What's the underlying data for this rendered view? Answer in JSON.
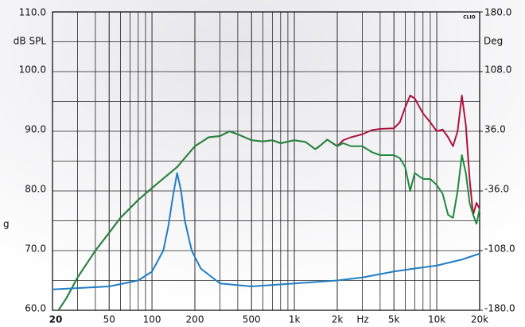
{
  "chart_data": {
    "type": "line",
    "y_label": "dB SPL",
    "y2_label": "Deg",
    "x_label": "Hz",
    "watermark": "CLIO",
    "side_note": "g",
    "log_x": true,
    "grid": true,
    "xlim": [
      20,
      20000
    ],
    "xticks": [
      20,
      50,
      100,
      200,
      500,
      {
        "value": 1000,
        "label": "1k"
      },
      {
        "value": 2000,
        "label": "2k"
      },
      {
        "value": 5000,
        "label": "5k"
      },
      {
        "value": 10000,
        "label": "10k"
      },
      {
        "value": 20000,
        "label": "20k"
      }
    ],
    "ylim": [
      60,
      110
    ],
    "yticks": [
      {
        "value": 60,
        "label": "60.0"
      },
      {
        "value": 70,
        "label": "70.0"
      },
      {
        "value": 80,
        "label": "80.0"
      },
      {
        "value": 90,
        "label": "90.0"
      },
      {
        "value": 100,
        "label": "100.0"
      },
      {
        "value": 110,
        "label": "110.0"
      }
    ],
    "y2lim": [
      -180,
      180
    ],
    "y2ticks": [
      {
        "value": -180,
        "label": "-180.0"
      },
      {
        "value": -108,
        "label": "-108.0"
      },
      {
        "value": -36,
        "label": "-36.0"
      },
      {
        "value": 36,
        "label": "36.0"
      },
      {
        "value": 108,
        "label": "108.0"
      },
      {
        "value": 180,
        "label": "180.0"
      }
    ],
    "series": [
      {
        "color": "#b0123f",
        "x": [
          22,
          25,
          30,
          40,
          50,
          60,
          80,
          100,
          150,
          200,
          250,
          300,
          350,
          400,
          500,
          600,
          700,
          800,
          1000,
          1200,
          1400,
          1500,
          1700,
          2000,
          2200,
          2500,
          3000,
          3500,
          4000,
          5000,
          5500,
          6000,
          6500,
          7000,
          8000,
          9000,
          10000,
          11000,
          12000,
          13000,
          14000,
          15000,
          16000,
          17000,
          18000,
          19000,
          20000
        ],
        "values": [
          60,
          62,
          65.5,
          70,
          73,
          75.5,
          78.5,
          80.5,
          84,
          87.5,
          89,
          89.2,
          90,
          89.5,
          88.5,
          88.3,
          88.5,
          88,
          88.5,
          88.2,
          87,
          87.5,
          88.6,
          87.5,
          88.5,
          89,
          89.5,
          90.2,
          90.4,
          90.5,
          91.5,
          94,
          96,
          95.5,
          93,
          91.5,
          90,
          90.3,
          89,
          87.5,
          90,
          96,
          91,
          82,
          76,
          78,
          77
        ]
      },
      {
        "color": "#1e8a3c",
        "x": [
          22,
          25,
          30,
          40,
          50,
          60,
          80,
          100,
          150,
          200,
          250,
          300,
          350,
          400,
          500,
          600,
          700,
          800,
          1000,
          1200,
          1400,
          1500,
          1700,
          2000,
          2200,
          2500,
          3000,
          3500,
          4000,
          5000,
          5500,
          6000,
          6500,
          7000,
          8000,
          9000,
          10000,
          11000,
          12000,
          13000,
          14000,
          15000,
          16000,
          17000,
          18000,
          19000,
          20000
        ],
        "values": [
          60,
          62,
          65.5,
          70,
          73,
          75.5,
          78.5,
          80.5,
          84,
          87.5,
          89,
          89.2,
          90,
          89.5,
          88.5,
          88.3,
          88.5,
          88,
          88.5,
          88.2,
          87,
          87.5,
          88.6,
          87.5,
          88,
          87.5,
          87.5,
          86.5,
          86,
          86,
          85.5,
          84,
          80,
          83,
          82,
          82,
          81,
          79.5,
          76,
          75.5,
          80,
          86,
          83,
          78,
          76,
          74.5,
          77
        ]
      },
      {
        "color": "#1f7fc4",
        "x": [
          20,
          50,
          80,
          100,
          120,
          130,
          140,
          150,
          160,
          170,
          190,
          220,
          300,
          500,
          1000,
          2000,
          3000,
          5000,
          7000,
          10000,
          15000,
          20000
        ],
        "values": [
          63.5,
          64,
          65,
          66.5,
          70,
          74,
          79,
          83,
          80,
          75,
          70,
          67,
          64.5,
          64,
          64.5,
          65,
          65.5,
          66.5,
          67,
          67.5,
          68.5,
          69.5
        ]
      }
    ]
  }
}
